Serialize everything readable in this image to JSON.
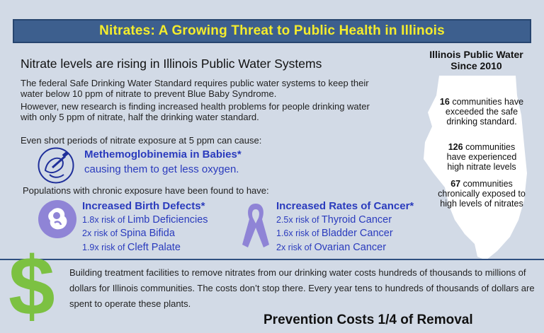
{
  "title": "Nitrates: A Growing Threat to Public Health in Illinois",
  "section_heading": "Nitrate levels are rising in Illinois Public Water Systems",
  "intro": {
    "p1": "The federal Safe Drinking Water Standard requires public water systems to keep their water below 10 ppm of nitrate to prevent Blue Baby Syndrome.",
    "p2": "However, new research is finding increased health problems for people drinking water with only 5 ppm of nitrate, half the drinking water standard."
  },
  "exposure_text": "Even short periods of nitrate exposure at 5 ppm can cause:",
  "methemoglobinemia": {
    "title": "Methemoglobinemia in Babies*",
    "subtitle": "causing them to get less oxygen."
  },
  "chronic_text": "Populations with chronic exposure have been found to have:",
  "birth_defects": {
    "title": "Increased Birth Defects*",
    "items": [
      {
        "risk": "1.8x risk of",
        "condition": "Limb Deficiencies"
      },
      {
        "risk": "2x risk of",
        "condition": "Spina Bifida"
      },
      {
        "risk": "1.9x risk of",
        "condition": "Cleft Palate"
      }
    ]
  },
  "cancer": {
    "title": "Increased Rates of Cancer*",
    "items": [
      {
        "risk": "2.5x risk of",
        "condition": "Thyroid Cancer"
      },
      {
        "risk": "1.6x risk of",
        "condition": "Bladder Cancer"
      },
      {
        "risk": "2x risk of",
        "condition": "Ovarian Cancer"
      }
    ]
  },
  "illinois_panel": {
    "title_line1": "Illinois Public Water",
    "title_line2": "Since 2010",
    "stats": [
      {
        "number": "16",
        "text": "communities have exceeded the safe drinking standard."
      },
      {
        "number": "126",
        "text": "communities have experienced high nitrate levels"
      },
      {
        "number": "67",
        "text": "communities chronically exposed to high levels of nitrates"
      }
    ]
  },
  "cost_text": "Building treatment facilities to remove nitrates from our drinking water costs hundreds of thousands to millions of dollars for Illinois communities.  The costs don’t stop there.  Every year tens to hundreds of thousands of dollars are spent to operate these plants.",
  "dollar_symbol": "$",
  "prevention_heading": "Prevention Costs 1/4 of Removal",
  "colors": {
    "title_bg": "#3d5f8e",
    "title_text": "#f4ec2c",
    "accent_blue": "#2a3bbd",
    "icon_purple": "#8f84d6",
    "dollar_green": "#7cc142"
  },
  "icons": {
    "baby": "baby-bottle-icon",
    "fetus": "fetus-icon",
    "ribbon": "awareness-ribbon-icon",
    "map": "illinois-map-icon"
  }
}
